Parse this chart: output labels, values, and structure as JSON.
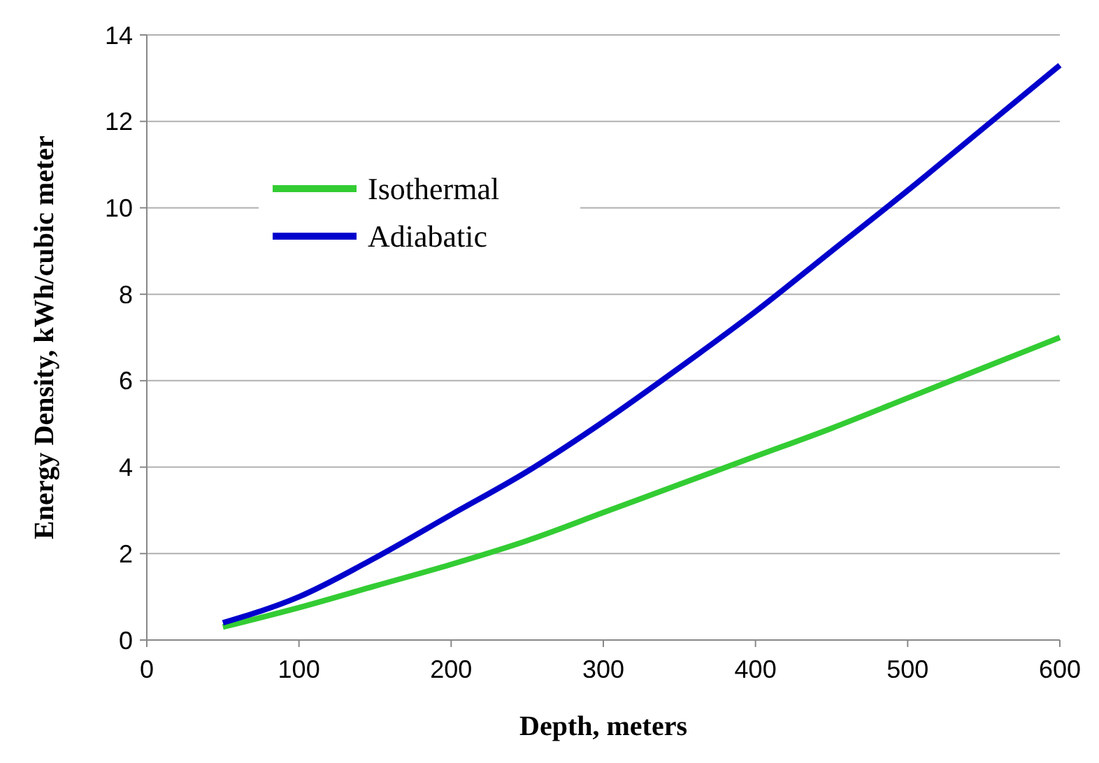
{
  "chart_data": {
    "type": "line",
    "xlabel": "Depth, meters",
    "ylabel": "Energy Density, kWh/cubic meter",
    "xlim": [
      0,
      600
    ],
    "xticks": [
      0,
      100,
      200,
      300,
      400,
      500,
      600
    ],
    "ylim": [
      0,
      14
    ],
    "yticks": [
      0,
      2,
      4,
      6,
      8,
      10,
      12,
      14
    ],
    "grid": "y",
    "legend": "top left",
    "marker": "none",
    "line_style": "solid",
    "series": [
      {
        "name": "Isothermal",
        "color": "#33cc33",
        "x": [
          50,
          100,
          150,
          200,
          250,
          300,
          350,
          400,
          450,
          500,
          550,
          600
        ],
        "values": [
          0.3,
          0.75,
          1.25,
          1.75,
          2.3,
          2.95,
          3.6,
          4.25,
          4.9,
          5.6,
          6.3,
          7.0
        ]
      },
      {
        "name": "Adiabatic",
        "color": "#0000cc",
        "x": [
          50,
          100,
          150,
          200,
          250,
          300,
          350,
          400,
          450,
          500,
          550,
          600
        ],
        "values": [
          0.4,
          1.0,
          1.9,
          2.9,
          3.9,
          5.05,
          6.3,
          7.6,
          9.0,
          10.4,
          11.85,
          13.3
        ]
      }
    ]
  }
}
